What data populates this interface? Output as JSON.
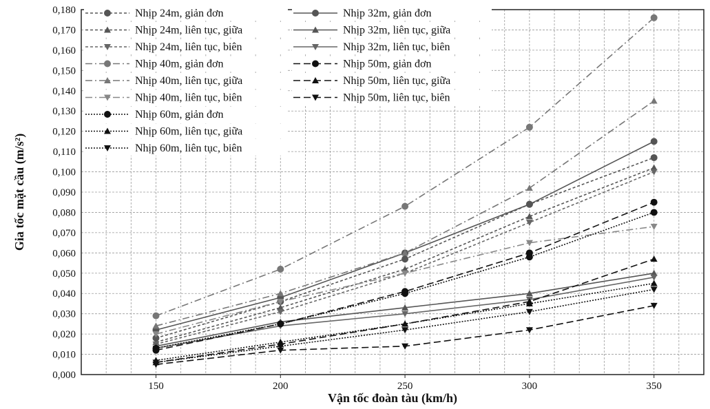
{
  "chart_data": {
    "type": "line",
    "title": "",
    "xlabel": "Vận tốc đoàn tàu (km/h)",
    "ylabel": "Gia tốc mặt cầu (m/s²)",
    "xlim": [
      120,
      370
    ],
    "ylim": [
      0,
      0.18
    ],
    "xticks": [
      150,
      200,
      250,
      300,
      350
    ],
    "yticks": [
      0,
      0.01,
      0.02,
      0.03,
      0.04,
      0.05,
      0.06,
      0.07,
      0.08,
      0.09,
      0.1,
      0.11,
      0.12,
      0.13,
      0.14,
      0.15,
      0.16,
      0.17,
      0.18
    ],
    "ytick_labels": [
      "0,000",
      "0,010",
      "0,020",
      "0,030",
      "0,040",
      "0,050",
      "0,060",
      "0,070",
      "0,080",
      "0,090",
      "0,100",
      "0,110",
      "0,120",
      "0,130",
      "0,140",
      "0,150",
      "0,160",
      "0,170",
      "0,180"
    ],
    "grid": true,
    "legend_position": "top-left",
    "x": [
      150,
      200,
      250,
      300,
      350
    ],
    "series": [
      {
        "name": "Nhịp 24m, giản đơn",
        "values": [
          0.018,
          0.036,
          0.057,
          0.084,
          0.107
        ],
        "color": "#555555",
        "dash": "4,3",
        "marker": "circle"
      },
      {
        "name": "Nhịp 24m, liên tục, giữa",
        "values": [
          0.016,
          0.033,
          0.052,
          0.078,
          0.102
        ],
        "color": "#555555",
        "dash": "4,3",
        "marker": "triangle"
      },
      {
        "name": "Nhịp 24m, liên tục, biên",
        "values": [
          0.015,
          0.031,
          0.05,
          0.075,
          0.1
        ],
        "color": "#666666",
        "dash": "4,3",
        "marker": "triangle-down"
      },
      {
        "name": "Nhịp 32m, giản đơn",
        "values": [
          0.022,
          0.038,
          0.06,
          0.084,
          0.115
        ],
        "color": "#555555",
        "dash": "",
        "marker": "circle"
      },
      {
        "name": "Nhịp 32m, liên tục, giữa",
        "values": [
          0.014,
          0.026,
          0.033,
          0.04,
          0.05
        ],
        "color": "#555555",
        "dash": "",
        "marker": "triangle"
      },
      {
        "name": "Nhịp 32m, liên tục, biên",
        "values": [
          0.013,
          0.024,
          0.03,
          0.037,
          0.048
        ],
        "color": "#666666",
        "dash": "",
        "marker": "triangle-down"
      },
      {
        "name": "Nhịp 40m, giản đơn",
        "values": [
          0.029,
          0.052,
          0.083,
          0.122,
          0.176
        ],
        "color": "#777777",
        "dash": "10,4,2,4",
        "marker": "circle"
      },
      {
        "name": "Nhịp 40m, liên tục, giữa",
        "values": [
          0.024,
          0.04,
          0.06,
          0.092,
          0.135
        ],
        "color": "#777777",
        "dash": "10,4,2,4",
        "marker": "triangle"
      },
      {
        "name": "Nhịp 40m, liên tục, biên",
        "values": [
          0.02,
          0.036,
          0.05,
          0.065,
          0.073
        ],
        "color": "#888888",
        "dash": "10,4,2,4",
        "marker": "triangle-down"
      },
      {
        "name": "Nhịp 50m, giản đơn",
        "values": [
          0.012,
          0.025,
          0.041,
          0.06,
          0.085
        ],
        "color": "#111111",
        "dash": "10,5",
        "marker": "circle"
      },
      {
        "name": "Nhịp 50m, liên tục, giữa",
        "values": [
          0.006,
          0.015,
          0.025,
          0.036,
          0.057
        ],
        "color": "#111111",
        "dash": "10,5",
        "marker": "triangle"
      },
      {
        "name": "Nhịp 50m, liên tục, biên",
        "values": [
          0.005,
          0.012,
          0.014,
          0.022,
          0.034
        ],
        "color": "#111111",
        "dash": "10,5",
        "marker": "triangle-down"
      },
      {
        "name": "Nhịp 60m, giản đơn",
        "values": [
          0.013,
          0.025,
          0.04,
          0.058,
          0.08
        ],
        "color": "#111111",
        "dash": "2,2",
        "marker": "circle"
      },
      {
        "name": "Nhịp 60m, liên tục, giữa",
        "values": [
          0.007,
          0.016,
          0.025,
          0.035,
          0.045
        ],
        "color": "#111111",
        "dash": "2,2",
        "marker": "triangle"
      },
      {
        "name": "Nhịp 60m, liên tục, biên",
        "values": [
          0.006,
          0.014,
          0.022,
          0.031,
          0.042
        ],
        "color": "#111111",
        "dash": "2,2",
        "marker": "triangle-down"
      }
    ]
  }
}
